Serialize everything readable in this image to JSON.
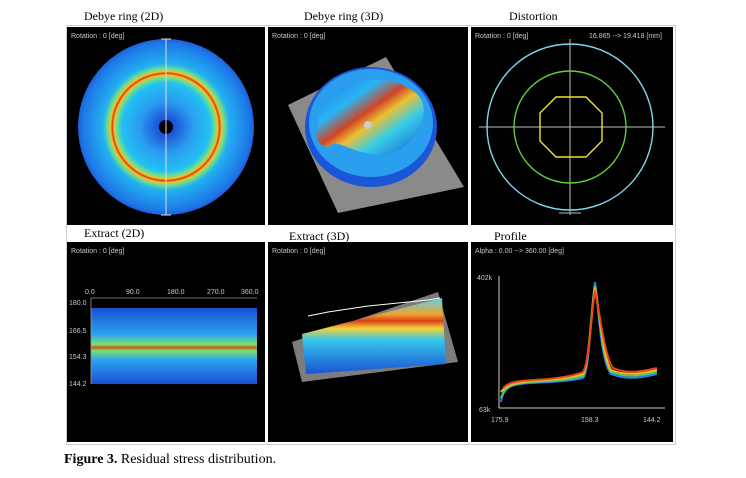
{
  "panels": {
    "debyering_2d": {
      "title": "Debye ring (2D)",
      "rotation": "Rotation : 0 [deg]"
    },
    "debyering_3d": {
      "title": "Debye ring (3D)",
      "rotation": "Rotation : 0 [deg]"
    },
    "distortion": {
      "title": "Distortion",
      "rotation": "Rotation : 0 [deg]",
      "range": "16.865 --> 19.418 [mm]"
    },
    "extract_2d": {
      "title": "Extract (2D)",
      "rotation": "Rotation : 0 [deg]",
      "x_ticks": [
        "0.0",
        "90.0",
        "180.0",
        "270.0",
        "360.0"
      ],
      "y_ticks": [
        "180.0",
        "166.5",
        "154.3",
        "144.2"
      ]
    },
    "extract_3d": {
      "title": "Extract (3D)",
      "rotation": "Rotation : 0 [deg]"
    },
    "profile": {
      "title": "Profile",
      "alpha": "Alpha : 0.00 --> 360.00 [deg]",
      "y_top": "402k",
      "y_bottom": "63k",
      "x_ticks": [
        "175.9",
        "158.3",
        "144.2"
      ]
    }
  },
  "caption": {
    "label": "Figure 3.",
    "text": " Residual stress distribution."
  }
}
